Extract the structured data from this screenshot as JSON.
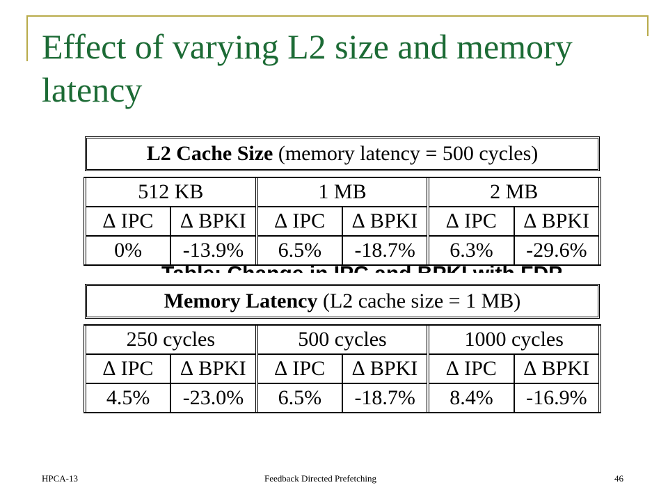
{
  "slide": {
    "title": "Effect of varying L2 size and memory latency"
  },
  "table1": {
    "caption_bold": "L2 Cache Size",
    "caption_rest": " (memory latency = 500 cycles)",
    "groups": [
      {
        "header": "512 KB",
        "col1": "∆ IPC",
        "col2": "∆ BPKI",
        "val1": "0%",
        "val2": "-13.9%"
      },
      {
        "header": "1 MB",
        "col1": "∆ IPC",
        "col2": "∆ BPKI",
        "val1": "6.5%",
        "val2": "-18.7%"
      },
      {
        "header": "2 MB",
        "col1": "∆ IPC",
        "col2": "∆ BPKI",
        "val1": "6.3%",
        "val2": "-29.6%"
      }
    ]
  },
  "clipped_caption": "Table: Change in IPC and BPKI with FDP",
  "table2": {
    "caption_bold": "Memory Latency",
    "caption_rest": " (L2 cache size = 1 MB)",
    "groups": [
      {
        "header": "250 cycles",
        "col1": "∆ IPC",
        "col2": "∆ BPKI",
        "val1": "4.5%",
        "val2": "-23.0%"
      },
      {
        "header": "500 cycles",
        "col1": "∆ IPC",
        "col2": "∆ BPKI",
        "val1": "6.5%",
        "val2": "-18.7%"
      },
      {
        "header": "1000 cycles",
        "col1": "∆ IPC",
        "col2": "∆ BPKI",
        "val1": "8.4%",
        "val2": "-16.9%"
      }
    ]
  },
  "footer": {
    "left": "HPCA-13",
    "center": "Feedback Directed Prefetching",
    "right": "46"
  },
  "colors": {
    "title": "#1c6b35",
    "accent_line": "#b8ab4a"
  }
}
